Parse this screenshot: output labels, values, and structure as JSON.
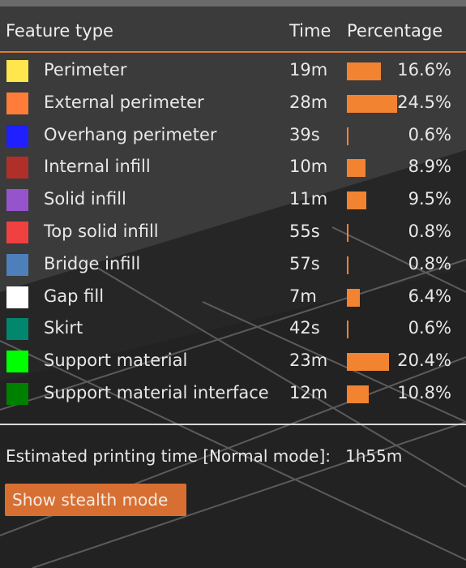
{
  "legend": {
    "header": {
      "feature_type": "Feature type",
      "time": "Time",
      "percentage": "Percentage"
    },
    "items": [
      {
        "name": "Perimeter",
        "time": "19m",
        "percent_label": "16.6%",
        "percent": 16.6,
        "color": "#ffe64d"
      },
      {
        "name": "External perimeter",
        "time": "28m",
        "percent_label": "24.5%",
        "percent": 24.5,
        "color": "#ff7d38"
      },
      {
        "name": "Overhang perimeter",
        "time": "39s",
        "percent_label": "0.6%",
        "percent": 0.6,
        "color": "#1f1fff"
      },
      {
        "name": "Internal infill",
        "time": "10m",
        "percent_label": "8.9%",
        "percent": 8.9,
        "color": "#b03029"
      },
      {
        "name": "Solid infill",
        "time": "11m",
        "percent_label": "9.5%",
        "percent": 9.5,
        "color": "#9654cc"
      },
      {
        "name": "Top solid infill",
        "time": "55s",
        "percent_label": "0.8%",
        "percent": 0.8,
        "color": "#f04040"
      },
      {
        "name": "Bridge infill",
        "time": "57s",
        "percent_label": "0.8%",
        "percent": 0.8,
        "color": "#4d80ba"
      },
      {
        "name": "Gap fill",
        "time": "7m",
        "percent_label": "6.4%",
        "percent": 6.4,
        "color": "#ffffff"
      },
      {
        "name": "Skirt",
        "time": "42s",
        "percent_label": "0.6%",
        "percent": 0.6,
        "color": "#00876e"
      },
      {
        "name": "Support material",
        "time": "23m",
        "percent_label": "20.4%",
        "percent": 20.4,
        "color": "#00ff00"
      },
      {
        "name": "Support material interface",
        "time": "12m",
        "percent_label": "10.8%",
        "percent": 10.8,
        "color": "#008000"
      }
    ]
  },
  "estimate": {
    "label": "Estimated printing time [Normal mode]:",
    "value": "1h55m"
  },
  "stealth_button": {
    "label": "Show stealth mode"
  },
  "colors": {
    "bar": "#f28331",
    "accent_rule": "#e07a3a",
    "button": "#d86f32"
  }
}
